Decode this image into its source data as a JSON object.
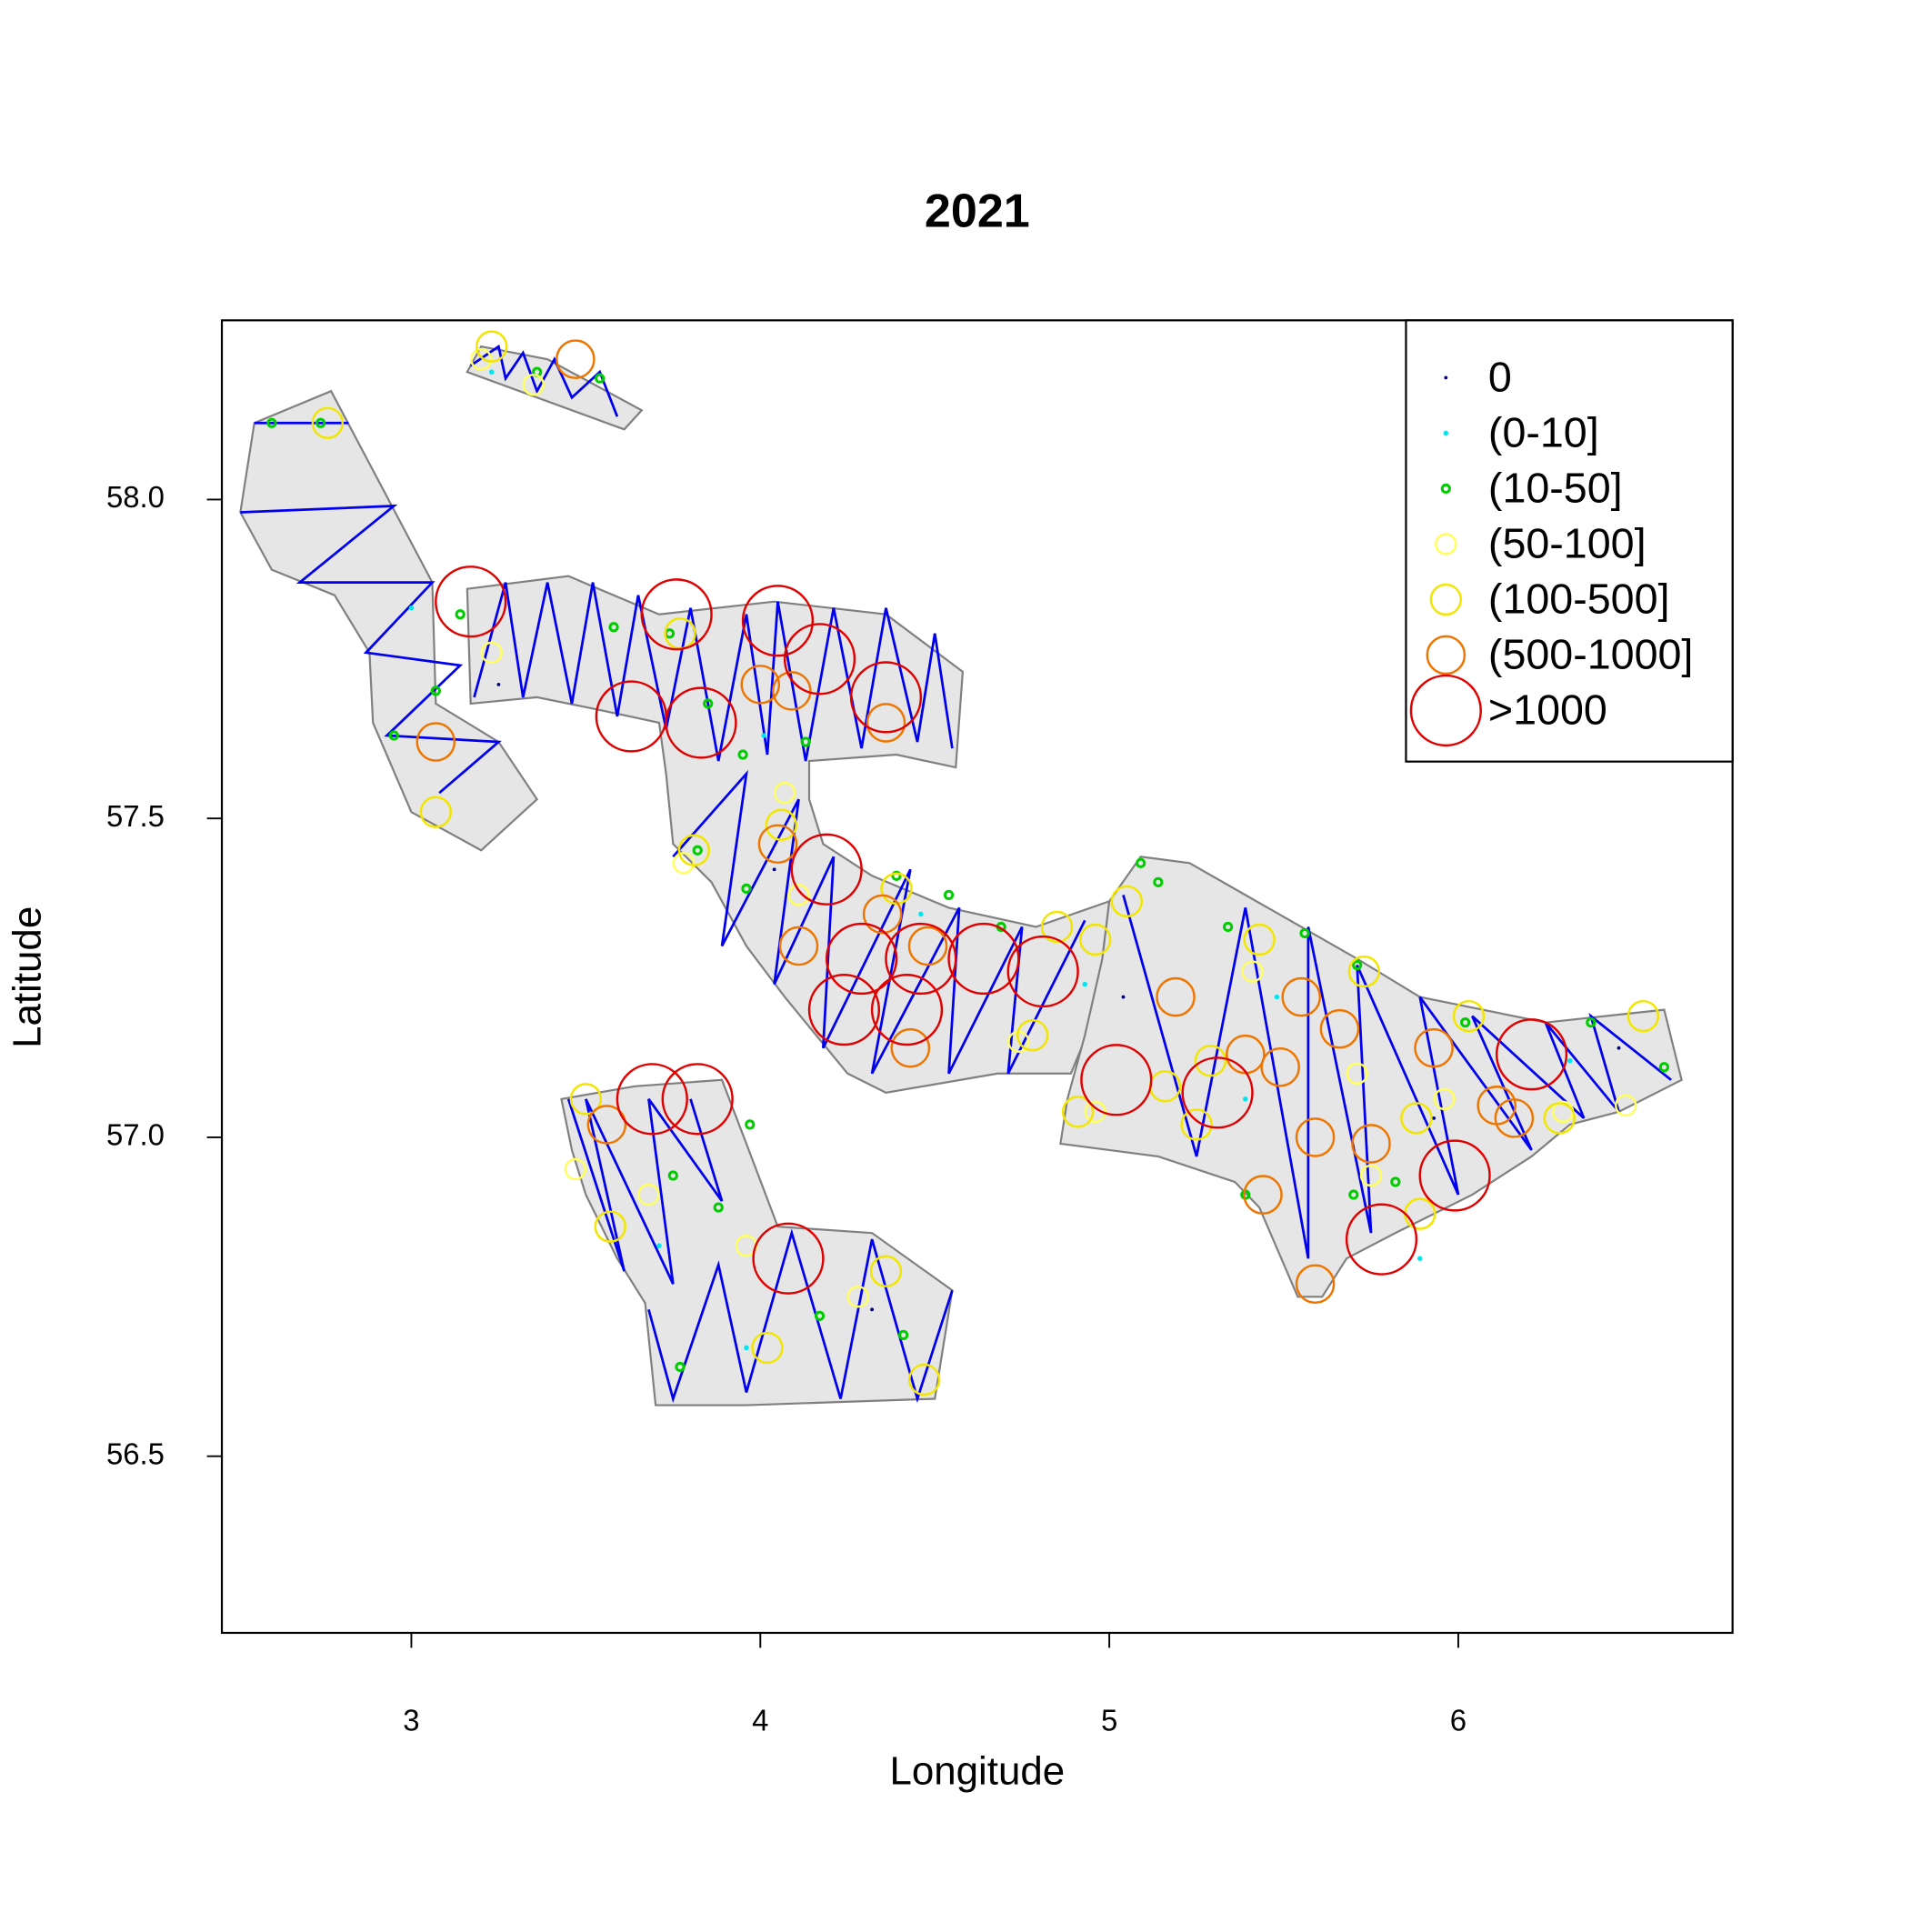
{
  "chart_data": {
    "type": "scatter",
    "title": "2021",
    "xlabel": "Longitude",
    "ylabel": "Latitude",
    "xlim": [
      2.457,
      6.786
    ],
    "ylim": [
      56.223,
      58.281
    ],
    "xticks": [
      3,
      4,
      5,
      6
    ],
    "yticks": [
      56.5,
      {
        "value": 57,
        "label": "57.0"
      },
      57.5,
      {
        "value": 58,
        "label": "58.0"
      }
    ],
    "legend": "topright",
    "strata_color": "#e6e6e6",
    "transect_color": "#0000ee",
    "strata": [
      {
        "lon": [
          3.16,
          3.2,
          3.39,
          3.66,
          3.61,
          3.16
        ],
        "lat": [
          58.2,
          58.24,
          58.22,
          58.14,
          58.11,
          58.2
        ]
      },
      {
        "lon": [
          2.55,
          2.77,
          3.06,
          3.07,
          3.25,
          3.36,
          3.2,
          3.0,
          2.89,
          2.88,
          2.78,
          2.6,
          2.51,
          2.55
        ],
        "lat": [
          58.12,
          58.17,
          57.87,
          57.68,
          57.62,
          57.53,
          57.45,
          57.51,
          57.65,
          57.76,
          57.85,
          57.89,
          57.98,
          58.12
        ]
      },
      {
        "lon": [
          3.17,
          3.16,
          3.45,
          3.71,
          4.04,
          4.36,
          4.58,
          4.56,
          4.39,
          4.14,
          4.14,
          4.18,
          4.32,
          4.54,
          4.79,
          5.0,
          4.98,
          4.95,
          4.89,
          4.68,
          4.36,
          4.25,
          4.07,
          3.96,
          3.86,
          3.75,
          3.73,
          3.71,
          3.54,
          3.36,
          3.17
        ],
        "lat": [
          57.68,
          57.86,
          57.88,
          57.82,
          57.84,
          57.82,
          57.73,
          57.58,
          57.6,
          57.59,
          57.53,
          57.46,
          57.41,
          57.36,
          57.33,
          57.37,
          57.28,
          57.18,
          57.1,
          57.1,
          57.07,
          57.1,
          57.22,
          57.3,
          57.4,
          57.46,
          57.57,
          57.65,
          57.67,
          57.69,
          57.68
        ]
      },
      {
        "lon": [
          5.0,
          5.09,
          5.23,
          5.39,
          5.71,
          5.89,
          6.25,
          6.59,
          6.64,
          6.46,
          6.32,
          6.21,
          6.04,
          5.82,
          5.68,
          5.61,
          5.54,
          5.43,
          5.36,
          5.14,
          4.86,
          4.88,
          4.93,
          4.98,
          5.0
        ],
        "lat": [
          57.37,
          57.44,
          57.43,
          57.38,
          57.28,
          57.22,
          57.18,
          57.2,
          57.09,
          57.04,
          57.02,
          56.97,
          56.91,
          56.85,
          56.81,
          56.75,
          56.75,
          56.89,
          56.93,
          56.97,
          56.99,
          57.06,
          57.16,
          57.28,
          57.37
        ]
      },
      {
        "lon": [
          3.43,
          3.64,
          3.89,
          3.96,
          4.05,
          4.32,
          4.55,
          4.5,
          3.96,
          3.7,
          3.67,
          3.59,
          3.5,
          3.46,
          3.43
        ],
        "lat": [
          57.06,
          57.08,
          57.09,
          56.99,
          56.86,
          56.85,
          56.76,
          56.59,
          56.58,
          56.58,
          56.74,
          56.81,
          56.91,
          56.98,
          57.06
        ]
      }
    ],
    "transects": [
      {
        "lon": [
          3.17,
          3.25,
          3.27,
          3.32,
          3.36,
          3.41,
          3.46,
          3.54,
          3.59
        ],
        "lat": [
          58.21,
          58.24,
          58.19,
          58.23,
          58.17,
          58.22,
          58.16,
          58.2,
          58.13
        ]
      },
      {
        "lon": [
          2.55,
          2.82
        ],
        "lat": [
          58.12,
          58.12
        ]
      },
      {
        "lon": [
          2.51,
          2.95,
          2.68,
          3.06,
          2.87,
          3.14,
          2.93,
          3.25,
          3.08
        ],
        "lat": [
          57.98,
          57.99,
          57.87,
          57.87,
          57.76,
          57.74,
          57.63,
          57.62,
          57.54
        ]
      },
      {
        "lon": [
          3.18,
          3.27,
          3.32,
          3.39,
          3.46,
          3.52,
          3.59,
          3.65,
          3.73,
          3.8,
          3.88,
          3.96,
          4.02,
          4.05,
          4.13,
          4.21,
          4.29,
          4.36,
          4.45,
          4.5,
          4.55
        ],
        "lat": [
          57.69,
          57.87,
          57.69,
          57.87,
          57.68,
          57.87,
          57.66,
          57.85,
          57.64,
          57.83,
          57.59,
          57.82,
          57.6,
          57.84,
          57.59,
          57.83,
          57.61,
          57.83,
          57.62,
          57.79,
          57.61
        ]
      },
      {
        "lon": [
          3.75,
          3.96,
          3.89,
          4.11,
          4.04,
          4.21,
          4.18,
          4.43,
          4.32,
          4.57,
          4.54,
          4.75,
          4.71,
          4.93
        ],
        "lat": [
          57.44,
          57.57,
          57.3,
          57.53,
          57.24,
          57.44,
          57.14,
          57.42,
          57.1,
          57.36,
          57.1,
          57.33,
          57.1,
          57.34
        ]
      },
      {
        "lon": [
          5.04,
          5.25,
          5.39,
          5.57,
          5.57,
          5.75,
          5.71,
          6.0,
          5.89,
          6.21,
          6.04,
          6.36,
          6.25,
          6.46,
          6.38,
          6.61
        ],
        "lat": [
          57.38,
          56.97,
          57.36,
          56.81,
          57.33,
          56.85,
          57.27,
          56.91,
          57.22,
          56.98,
          57.19,
          57.03,
          57.18,
          57.04,
          57.19,
          57.09
        ]
      },
      {
        "lon": [
          3.45,
          3.61,
          3.5,
          3.75,
          3.68,
          3.89,
          3.8
        ],
        "lat": [
          57.06,
          56.79,
          57.06,
          56.77,
          57.06,
          56.9,
          57.06
        ]
      },
      {
        "lon": [
          3.68,
          3.75,
          3.88,
          3.96,
          4.09,
          4.23,
          4.32,
          4.45,
          4.55
        ],
        "lat": [
          56.73,
          56.59,
          56.8,
          56.6,
          56.85,
          56.59,
          56.84,
          56.59,
          56.76
        ]
      }
    ],
    "series": [
      {
        "name": "0",
        "color": "#00008b",
        "x": [
          3.25,
          4.04,
          5.04,
          5.93,
          4.32,
          6.46
        ],
        "values": [
          57.71,
          57.42,
          57.22,
          57.03,
          56.73,
          57.14
        ]
      },
      {
        "name": "(0-10]",
        "color": "#00e5ee",
        "x": [
          3.0,
          3.23,
          4.01,
          4.46,
          5.48,
          6.32,
          5.89,
          3.71,
          3.96,
          5.39,
          4.93
        ],
        "values": [
          57.83,
          58.2,
          57.63,
          57.35,
          57.22,
          57.12,
          56.81,
          56.83,
          56.67,
          57.06,
          57.24
        ]
      },
      {
        "name": "(10-50]",
        "color": "#00cd00",
        "x": [
          2.6,
          2.74,
          3.14,
          3.07,
          2.95,
          3.36,
          3.54,
          3.58,
          3.74,
          3.85,
          3.95,
          4.13,
          3.82,
          3.96,
          4.39,
          4.54,
          4.69,
          5.09,
          5.14,
          5.34,
          5.56,
          5.71,
          6.02,
          6.38,
          6.59,
          5.82,
          5.7,
          5.39,
          3.75,
          3.88,
          3.77,
          4.17,
          4.41,
          3.97
        ],
        "values": [
          58.12,
          58.12,
          57.82,
          57.7,
          57.63,
          58.2,
          58.19,
          57.8,
          57.79,
          57.68,
          57.6,
          57.62,
          57.45,
          57.39,
          57.41,
          57.38,
          57.33,
          57.43,
          57.4,
          57.33,
          57.32,
          57.27,
          57.18,
          57.18,
          57.11,
          56.93,
          56.91,
          56.91,
          56.94,
          56.89,
          56.64,
          56.72,
          56.69,
          57.02
        ]
      },
      {
        "name": "(50-100]",
        "color": "#ffff60",
        "x": [
          3.2,
          3.35,
          3.23,
          4.07,
          3.78,
          4.11,
          4.74,
          5.41,
          5.71,
          5.96,
          5.75,
          3.47,
          3.68,
          3.96,
          4.28,
          6.3,
          6.48,
          4.96
        ],
        "values": [
          58.22,
          58.18,
          57.76,
          57.54,
          57.43,
          57.38,
          57.15,
          57.26,
          57.1,
          57.06,
          56.94,
          56.95,
          56.91,
          56.83,
          56.75,
          57.04,
          57.05,
          57.04
        ]
      },
      {
        "name": "(100-500]",
        "color": "#f2e600",
        "x": [
          3.23,
          2.76,
          3.07,
          3.81,
          4.06,
          4.39,
          4.85,
          4.96,
          5.05,
          5.43,
          6.03,
          6.53,
          6.29,
          3.5,
          3.57,
          4.36,
          4.02,
          4.47,
          5.16,
          5.29,
          5.25,
          5.73,
          5.88,
          5.89,
          4.91,
          3.77,
          4.78
        ],
        "values": [
          58.24,
          58.12,
          57.51,
          57.45,
          57.49,
          57.39,
          57.33,
          57.31,
          57.37,
          57.31,
          57.19,
          57.19,
          57.03,
          57.06,
          56.86,
          56.79,
          56.67,
          56.62,
          57.08,
          57.12,
          57.02,
          57.26,
          57.03,
          56.88,
          57.04,
          57.79,
          57.16
        ]
      },
      {
        "name": "(500-1000]",
        "color": "#ee7600",
        "x": [
          3.47,
          3.07,
          4.0,
          4.05,
          4.11,
          4.35,
          4.48,
          4.43,
          5.55,
          5.59,
          5.66,
          5.93,
          5.75,
          6.11,
          6.16,
          5.44,
          5.59,
          3.56,
          4.36,
          5.19,
          5.39,
          5.49,
          4.09
        ],
        "values": [
          58.22,
          57.62,
          57.71,
          57.46,
          57.3,
          57.35,
          57.3,
          57.14,
          57.22,
          57.0,
          57.17,
          57.14,
          56.99,
          57.05,
          57.03,
          56.91,
          56.77,
          57.02,
          57.65,
          57.22,
          57.13,
          57.11,
          57.7
        ]
      },
      {
        "name": ">1000",
        "color": "#e00000",
        "x": [
          3.17,
          3.76,
          4.05,
          4.17,
          3.63,
          3.83,
          4.36,
          4.19,
          4.29,
          4.24,
          4.64,
          4.81,
          4.42,
          5.02,
          5.31,
          6.21,
          5.99,
          5.78,
          4.08,
          3.69,
          3.82,
          4.46
        ],
        "values": [
          57.84,
          57.82,
          57.81,
          57.75,
          57.66,
          57.65,
          57.69,
          57.42,
          57.28,
          57.2,
          57.28,
          57.26,
          57.2,
          57.09,
          57.07,
          57.13,
          56.94,
          56.84,
          56.81,
          57.06,
          57.06,
          57.28
        ]
      }
    ]
  }
}
